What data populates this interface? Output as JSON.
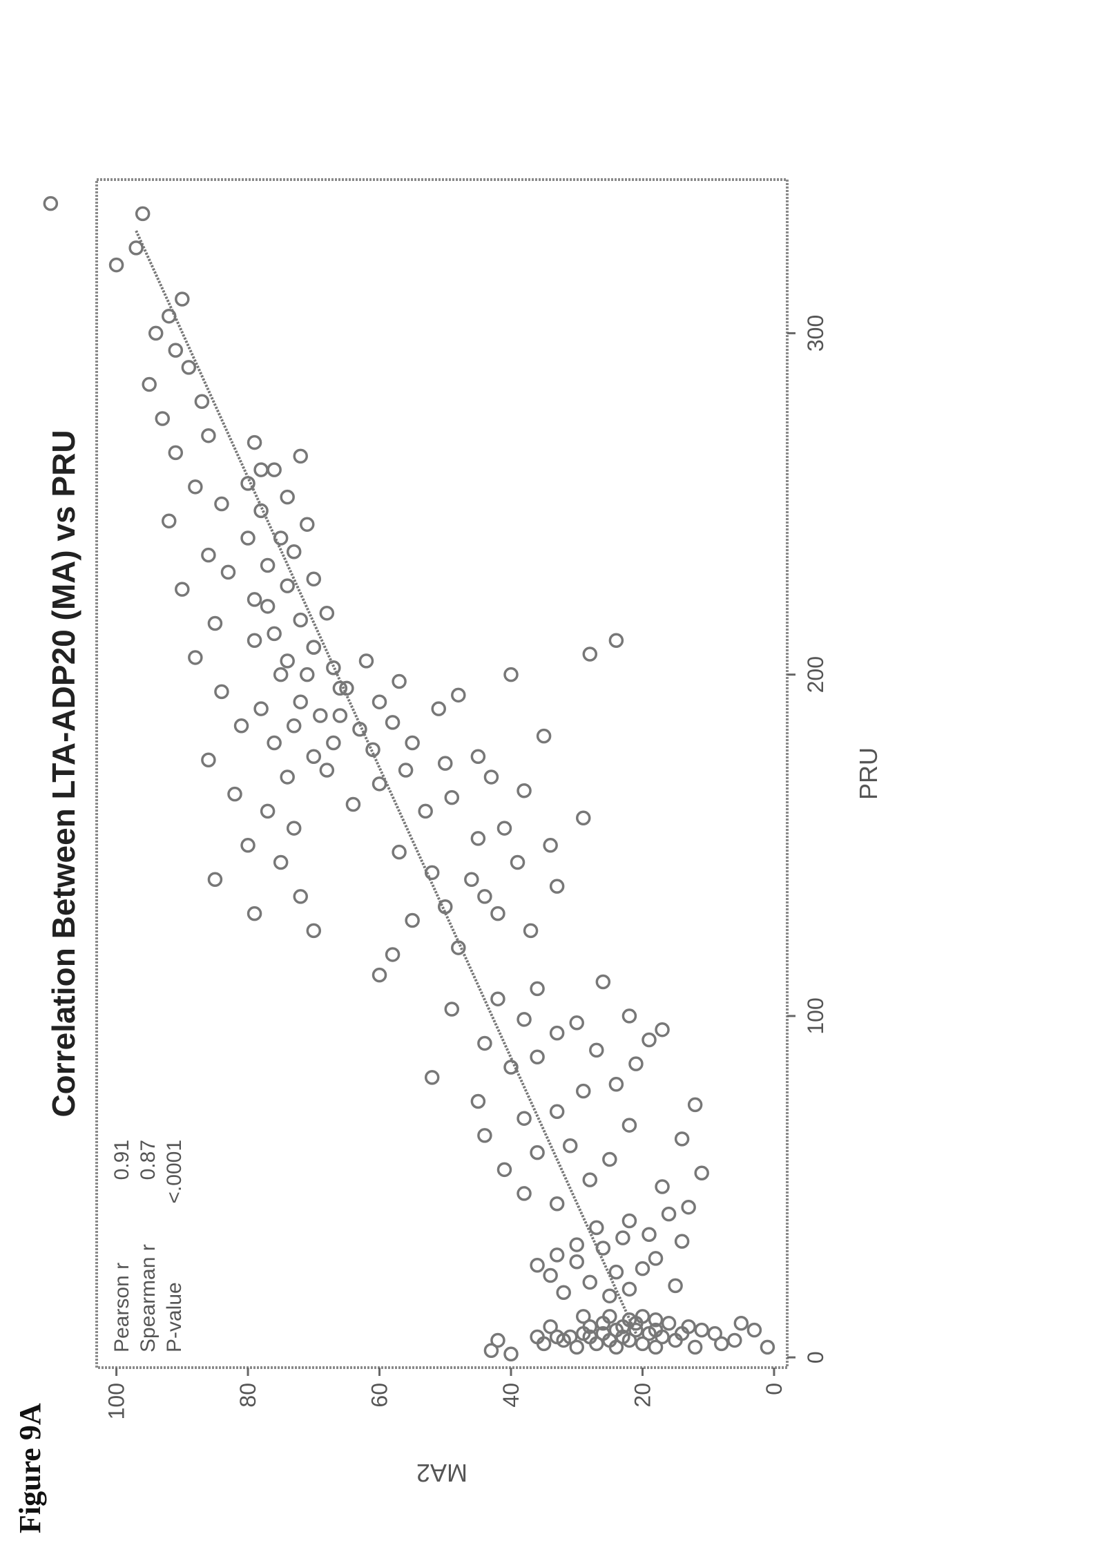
{
  "figure_label": "Figure 9A",
  "chart_data": {
    "type": "scatter",
    "title": "Correlation Between LTA-ADP20 (MA) vs PRU",
    "xlabel": "PRU",
    "ylabel": "MA2",
    "xlim": [
      -3,
      345
    ],
    "ylim": [
      -2,
      103
    ],
    "xticks": [
      0,
      100,
      200,
      300
    ],
    "yticks": [
      0,
      20,
      40,
      60,
      80,
      100
    ],
    "xtick_labels": [
      "0",
      "100",
      "200",
      "300"
    ],
    "ytick_labels": [
      "0",
      "20",
      "40",
      "60",
      "80",
      "100"
    ],
    "grid": false,
    "legend": null,
    "stats": [
      {
        "label": "Pearson r",
        "value": "0.91"
      },
      {
        "label": "Spearman r",
        "value": "0.87"
      },
      {
        "label": "P-value",
        "value": "<.0001"
      }
    ],
    "fit_line": {
      "x": [
        7,
        330
      ],
      "y": [
        21,
        97
      ]
    },
    "marker_color": "#777777",
    "series": [
      {
        "values": [
          [
            3,
            24
          ],
          [
            5,
            22
          ],
          [
            6,
            28
          ],
          [
            4,
            20
          ],
          [
            7,
            26
          ],
          [
            8,
            18
          ],
          [
            3,
            30
          ],
          [
            6,
            17
          ],
          [
            9,
            23
          ],
          [
            5,
            25
          ],
          [
            10,
            21
          ],
          [
            7,
            19
          ],
          [
            4,
            27
          ],
          [
            8,
            24
          ],
          [
            6,
            31
          ],
          [
            9,
            28
          ],
          [
            11,
            22
          ],
          [
            5,
            15
          ],
          [
            7,
            14
          ],
          [
            3,
            12
          ],
          [
            8,
            11
          ],
          [
            10,
            16
          ],
          [
            6,
            33
          ],
          [
            9,
            34
          ],
          [
            12,
            25
          ],
          [
            4,
            35
          ],
          [
            7,
            9
          ],
          [
            5,
            6
          ],
          [
            10,
            5
          ],
          [
            8,
            3
          ],
          [
            3,
            1
          ],
          [
            6,
            36
          ],
          [
            11,
            18
          ],
          [
            12,
            20
          ],
          [
            9,
            13
          ],
          [
            4,
            8
          ],
          [
            7,
            29
          ],
          [
            5,
            32
          ],
          [
            2,
            43
          ],
          [
            5,
            42
          ],
          [
            1,
            40
          ],
          [
            10,
            26
          ],
          [
            6,
            23
          ],
          [
            8,
            21
          ],
          [
            12,
            29
          ],
          [
            3,
            18
          ],
          [
            18,
            25
          ],
          [
            22,
            28
          ],
          [
            25,
            24
          ],
          [
            28,
            30
          ],
          [
            20,
            22
          ],
          [
            30,
            33
          ],
          [
            26,
            20
          ],
          [
            32,
            26
          ],
          [
            35,
            23
          ],
          [
            24,
            34
          ],
          [
            29,
            18
          ],
          [
            33,
            30
          ],
          [
            38,
            27
          ],
          [
            21,
            15
          ],
          [
            36,
            19
          ],
          [
            40,
            22
          ],
          [
            27,
            36
          ],
          [
            34,
            14
          ],
          [
            42,
            16
          ],
          [
            19,
            32
          ],
          [
            48,
            38
          ],
          [
            45,
            33
          ],
          [
            55,
            41
          ],
          [
            52,
            28
          ],
          [
            60,
            36
          ],
          [
            58,
            25
          ],
          [
            65,
            44
          ],
          [
            62,
            31
          ],
          [
            70,
            38
          ],
          [
            68,
            22
          ],
          [
            75,
            45
          ],
          [
            72,
            33
          ],
          [
            78,
            29
          ],
          [
            82,
            52
          ],
          [
            85,
            40
          ],
          [
            88,
            36
          ],
          [
            90,
            27
          ],
          [
            92,
            44
          ],
          [
            95,
            33
          ],
          [
            98,
            30
          ],
          [
            99,
            38
          ],
          [
            102,
            49
          ],
          [
            105,
            42
          ],
          [
            108,
            36
          ],
          [
            110,
            26
          ],
          [
            80,
            24
          ],
          [
            86,
            21
          ],
          [
            93,
            19
          ],
          [
            100,
            22
          ],
          [
            96,
            17
          ],
          [
            74,
            12
          ],
          [
            64,
            14
          ],
          [
            50,
            17
          ],
          [
            54,
            11
          ],
          [
            44,
            13
          ],
          [
            112,
            60
          ],
          [
            118,
            58
          ],
          [
            120,
            48
          ],
          [
            125,
            37
          ],
          [
            128,
            55
          ],
          [
            130,
            42
          ],
          [
            132,
            50
          ],
          [
            135,
            44
          ],
          [
            138,
            33
          ],
          [
            140,
            46
          ],
          [
            142,
            52
          ],
          [
            145,
            39
          ],
          [
            148,
            57
          ],
          [
            150,
            34
          ],
          [
            152,
            45
          ],
          [
            155,
            41
          ],
          [
            158,
            29
          ],
          [
            160,
            53
          ],
          [
            162,
            64
          ],
          [
            164,
            49
          ],
          [
            166,
            38
          ],
          [
            168,
            60
          ],
          [
            170,
            43
          ],
          [
            172,
            56
          ],
          [
            174,
            50
          ],
          [
            176,
            45
          ],
          [
            178,
            61
          ],
          [
            180,
            55
          ],
          [
            182,
            35
          ],
          [
            184,
            63
          ],
          [
            186,
            58
          ],
          [
            188,
            66
          ],
          [
            190,
            51
          ],
          [
            192,
            60
          ],
          [
            194,
            48
          ],
          [
            196,
            65
          ],
          [
            198,
            57
          ],
          [
            200,
            40
          ],
          [
            202,
            67
          ],
          [
            204,
            62
          ],
          [
            206,
            28
          ],
          [
            208,
            70
          ],
          [
            210,
            24
          ],
          [
            125,
            70
          ],
          [
            130,
            79
          ],
          [
            135,
            72
          ],
          [
            140,
            85
          ],
          [
            145,
            75
          ],
          [
            150,
            80
          ],
          [
            155,
            73
          ],
          [
            160,
            77
          ],
          [
            165,
            82
          ],
          [
            170,
            74
          ],
          [
            175,
            86
          ],
          [
            180,
            76
          ],
          [
            185,
            81
          ],
          [
            190,
            78
          ],
          [
            195,
            84
          ],
          [
            200,
            75
          ],
          [
            205,
            88
          ],
          [
            210,
            79
          ],
          [
            215,
            85
          ],
          [
            220,
            77
          ],
          [
            225,
            90
          ],
          [
            230,
            83
          ],
          [
            235,
            86
          ],
          [
            240,
            80
          ],
          [
            245,
            92
          ],
          [
            250,
            84
          ],
          [
            255,
            88
          ],
          [
            260,
            78
          ],
          [
            265,
            91
          ],
          [
            270,
            86
          ],
          [
            275,
            93
          ],
          [
            280,
            87
          ],
          [
            285,
            95
          ],
          [
            290,
            89
          ],
          [
            295,
            91
          ],
          [
            300,
            94
          ],
          [
            305,
            92
          ],
          [
            310,
            90
          ],
          [
            320,
            100
          ],
          [
            325,
            97
          ],
          [
            335,
            96
          ],
          [
            338,
            110
          ],
          [
            172,
            68
          ],
          [
            176,
            70
          ],
          [
            180,
            67
          ],
          [
            185,
            73
          ],
          [
            188,
            69
          ],
          [
            192,
            72
          ],
          [
            196,
            66
          ],
          [
            200,
            71
          ],
          [
            204,
            74
          ],
          [
            208,
            70
          ],
          [
            212,
            76
          ],
          [
            216,
            72
          ],
          [
            218,
            68
          ],
          [
            222,
            79
          ],
          [
            226,
            74
          ],
          [
            228,
            70
          ],
          [
            232,
            77
          ],
          [
            236,
            73
          ],
          [
            240,
            75
          ],
          [
            244,
            71
          ],
          [
            248,
            78
          ],
          [
            252,
            74
          ],
          [
            256,
            80
          ],
          [
            260,
            76
          ],
          [
            264,
            72
          ],
          [
            268,
            79
          ]
        ]
      }
    ]
  }
}
